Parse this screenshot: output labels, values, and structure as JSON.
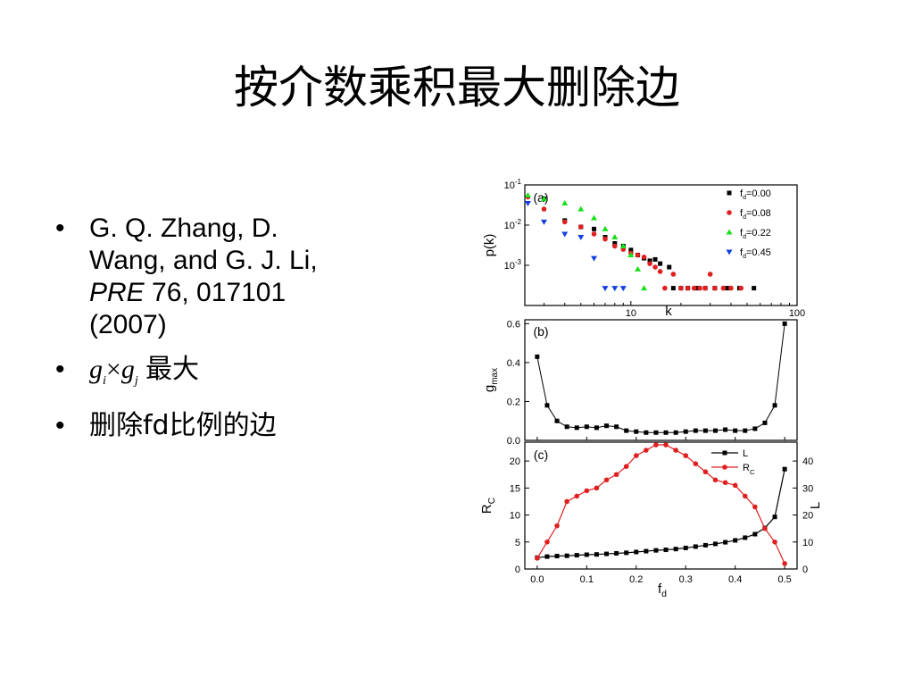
{
  "title": "按介数乘积最大删除边",
  "bullets": {
    "ref_line1": "G. Q. Zhang, D.",
    "ref_line2": "Wang, and G. J. Li,",
    "ref_journal": "PRE",
    "ref_rest": " 76, 017101",
    "ref_year": "(2007)",
    "g_i": "g",
    "i_sub": "i",
    "times": "×",
    "g_j": "g",
    "j_sub": "j",
    "max_text": "最大",
    "item3": "删除fd比例的边"
  },
  "chart_data": [
    {
      "type": "scatter",
      "panel_label": "(a)",
      "xlabel": "k",
      "ylabel": "p(k)",
      "x_scale": "log",
      "y_scale": "log",
      "xlim": [
        2.3,
        100
      ],
      "ylim": [
        0.0001,
        0.1
      ],
      "x_ticks": [
        10,
        100
      ],
      "y_tick_labels": [
        "10-1",
        "10-2",
        "10-3"
      ],
      "legend_position": "top-right",
      "series": [
        {
          "name": "fd=0.00",
          "color": "#000000",
          "marker": "square",
          "x": [
            3,
            4,
            5,
            6,
            7,
            8,
            9,
            10,
            11,
            12,
            13,
            14,
            15,
            17,
            18,
            20,
            22,
            25,
            28,
            32,
            38,
            45,
            55
          ],
          "y": [
            0.045,
            0.013,
            0.009,
            0.008,
            0.005,
            0.0035,
            0.003,
            0.0024,
            0.0018,
            0.0015,
            0.0013,
            0.0014,
            0.0011,
            0.0009,
            0.00027,
            0.00027,
            0.00027,
            0.00027,
            0.00027,
            0.00027,
            0.00027,
            0.00027,
            0.00027
          ]
        },
        {
          "name": "fd=0.08",
          "color": "#e02020",
          "marker": "circle",
          "x": [
            2.4,
            3,
            4,
            5,
            6,
            7,
            8,
            9,
            10,
            11,
            12,
            13,
            14,
            15,
            16,
            18,
            20,
            22,
            24,
            26,
            28,
            30,
            32,
            36,
            40,
            46
          ],
          "y": [
            0.05,
            0.025,
            0.012,
            0.009,
            0.006,
            0.0045,
            0.003,
            0.0025,
            0.002,
            0.0018,
            0.0016,
            0.0011,
            0.0009,
            0.0007,
            0.00027,
            0.0006,
            0.00027,
            0.00027,
            0.00027,
            0.00027,
            0.00027,
            0.0006,
            0.00027,
            0.00027,
            0.00027,
            0.00027
          ]
        },
        {
          "name": "fd=0.22",
          "color": "#18e018",
          "marker": "triangle-up",
          "x": [
            2.4,
            3,
            4,
            5,
            6,
            7,
            8,
            9,
            10,
            11,
            12
          ],
          "y": [
            0.055,
            0.045,
            0.035,
            0.025,
            0.015,
            0.008,
            0.005,
            0.003,
            0.0018,
            0.0008,
            0.00027
          ]
        },
        {
          "name": "fd=0.45",
          "color": "#1040e0",
          "marker": "triangle-down",
          "x": [
            2.4,
            3,
            4,
            5,
            6,
            7,
            8,
            9
          ],
          "y": [
            0.035,
            0.012,
            0.006,
            0.005,
            0.0015,
            0.00027,
            0.00027,
            0.00027
          ]
        }
      ]
    },
    {
      "type": "line",
      "panel_label": "(b)",
      "xlabel": "",
      "ylabel": "gmax",
      "xlim": [
        -0.025,
        0.525
      ],
      "ylim": [
        0.0,
        0.62
      ],
      "y_ticks": [
        0.0,
        0.2,
        0.4,
        0.6
      ],
      "series": [
        {
          "name": "",
          "color": "#000000",
          "marker": "square",
          "x": [
            0.0,
            0.02,
            0.04,
            0.06,
            0.08,
            0.1,
            0.12,
            0.14,
            0.16,
            0.18,
            0.2,
            0.22,
            0.24,
            0.26,
            0.28,
            0.3,
            0.32,
            0.34,
            0.36,
            0.38,
            0.4,
            0.42,
            0.44,
            0.46,
            0.48,
            0.5
          ],
          "y": [
            0.43,
            0.18,
            0.1,
            0.07,
            0.065,
            0.07,
            0.065,
            0.075,
            0.07,
            0.05,
            0.045,
            0.04,
            0.04,
            0.04,
            0.04,
            0.045,
            0.05,
            0.05,
            0.05,
            0.055,
            0.05,
            0.05,
            0.06,
            0.09,
            0.18,
            0.6
          ]
        }
      ]
    },
    {
      "type": "line",
      "panel_label": "(c)",
      "xlabel": "fd",
      "ylabel": "RC",
      "ylabel_right": "L",
      "xlim": [
        -0.025,
        0.525
      ],
      "ylim": [
        0,
        23.5
      ],
      "ylim_right": [
        0,
        47
      ],
      "x_ticks": [
        0.0,
        0.1,
        0.2,
        0.3,
        0.4,
        0.5
      ],
      "y_ticks": [
        0,
        5,
        10,
        15,
        20
      ],
      "y_ticks_right": [
        0,
        10,
        20,
        30,
        40
      ],
      "legend_position": "top-right",
      "series": [
        {
          "name": "L",
          "color": "#000000",
          "marker": "square",
          "axis": "right",
          "x": [
            0.0,
            0.02,
            0.04,
            0.06,
            0.08,
            0.1,
            0.12,
            0.14,
            0.16,
            0.18,
            0.2,
            0.22,
            0.24,
            0.26,
            0.28,
            0.3,
            0.32,
            0.34,
            0.36,
            0.38,
            0.4,
            0.42,
            0.44,
            0.46,
            0.48,
            0.5
          ],
          "y": [
            4.2,
            4.6,
            4.8,
            4.9,
            5.1,
            5.3,
            5.4,
            5.6,
            5.8,
            6.0,
            6.3,
            6.6,
            6.9,
            7.1,
            7.4,
            7.8,
            8.3,
            8.8,
            9.3,
            9.9,
            10.6,
            11.6,
            12.9,
            15.2,
            19.3,
            37.0
          ]
        },
        {
          "name": "RC",
          "color": "#e02020",
          "marker": "circle",
          "axis": "left",
          "x": [
            0.0,
            0.02,
            0.04,
            0.06,
            0.08,
            0.1,
            0.12,
            0.14,
            0.16,
            0.18,
            0.2,
            0.22,
            0.24,
            0.26,
            0.28,
            0.3,
            0.32,
            0.34,
            0.36,
            0.38,
            0.4,
            0.42,
            0.44,
            0.46,
            0.48,
            0.5
          ],
          "y": [
            2.0,
            5.0,
            8.0,
            12.5,
            13.5,
            14.5,
            15.0,
            16.5,
            17.5,
            19.0,
            21.0,
            22.0,
            23.0,
            23.0,
            22.0,
            21.0,
            19.5,
            18.0,
            16.5,
            16.0,
            15.5,
            13.5,
            11.5,
            7.5,
            5.0,
            1.0
          ]
        }
      ]
    }
  ]
}
